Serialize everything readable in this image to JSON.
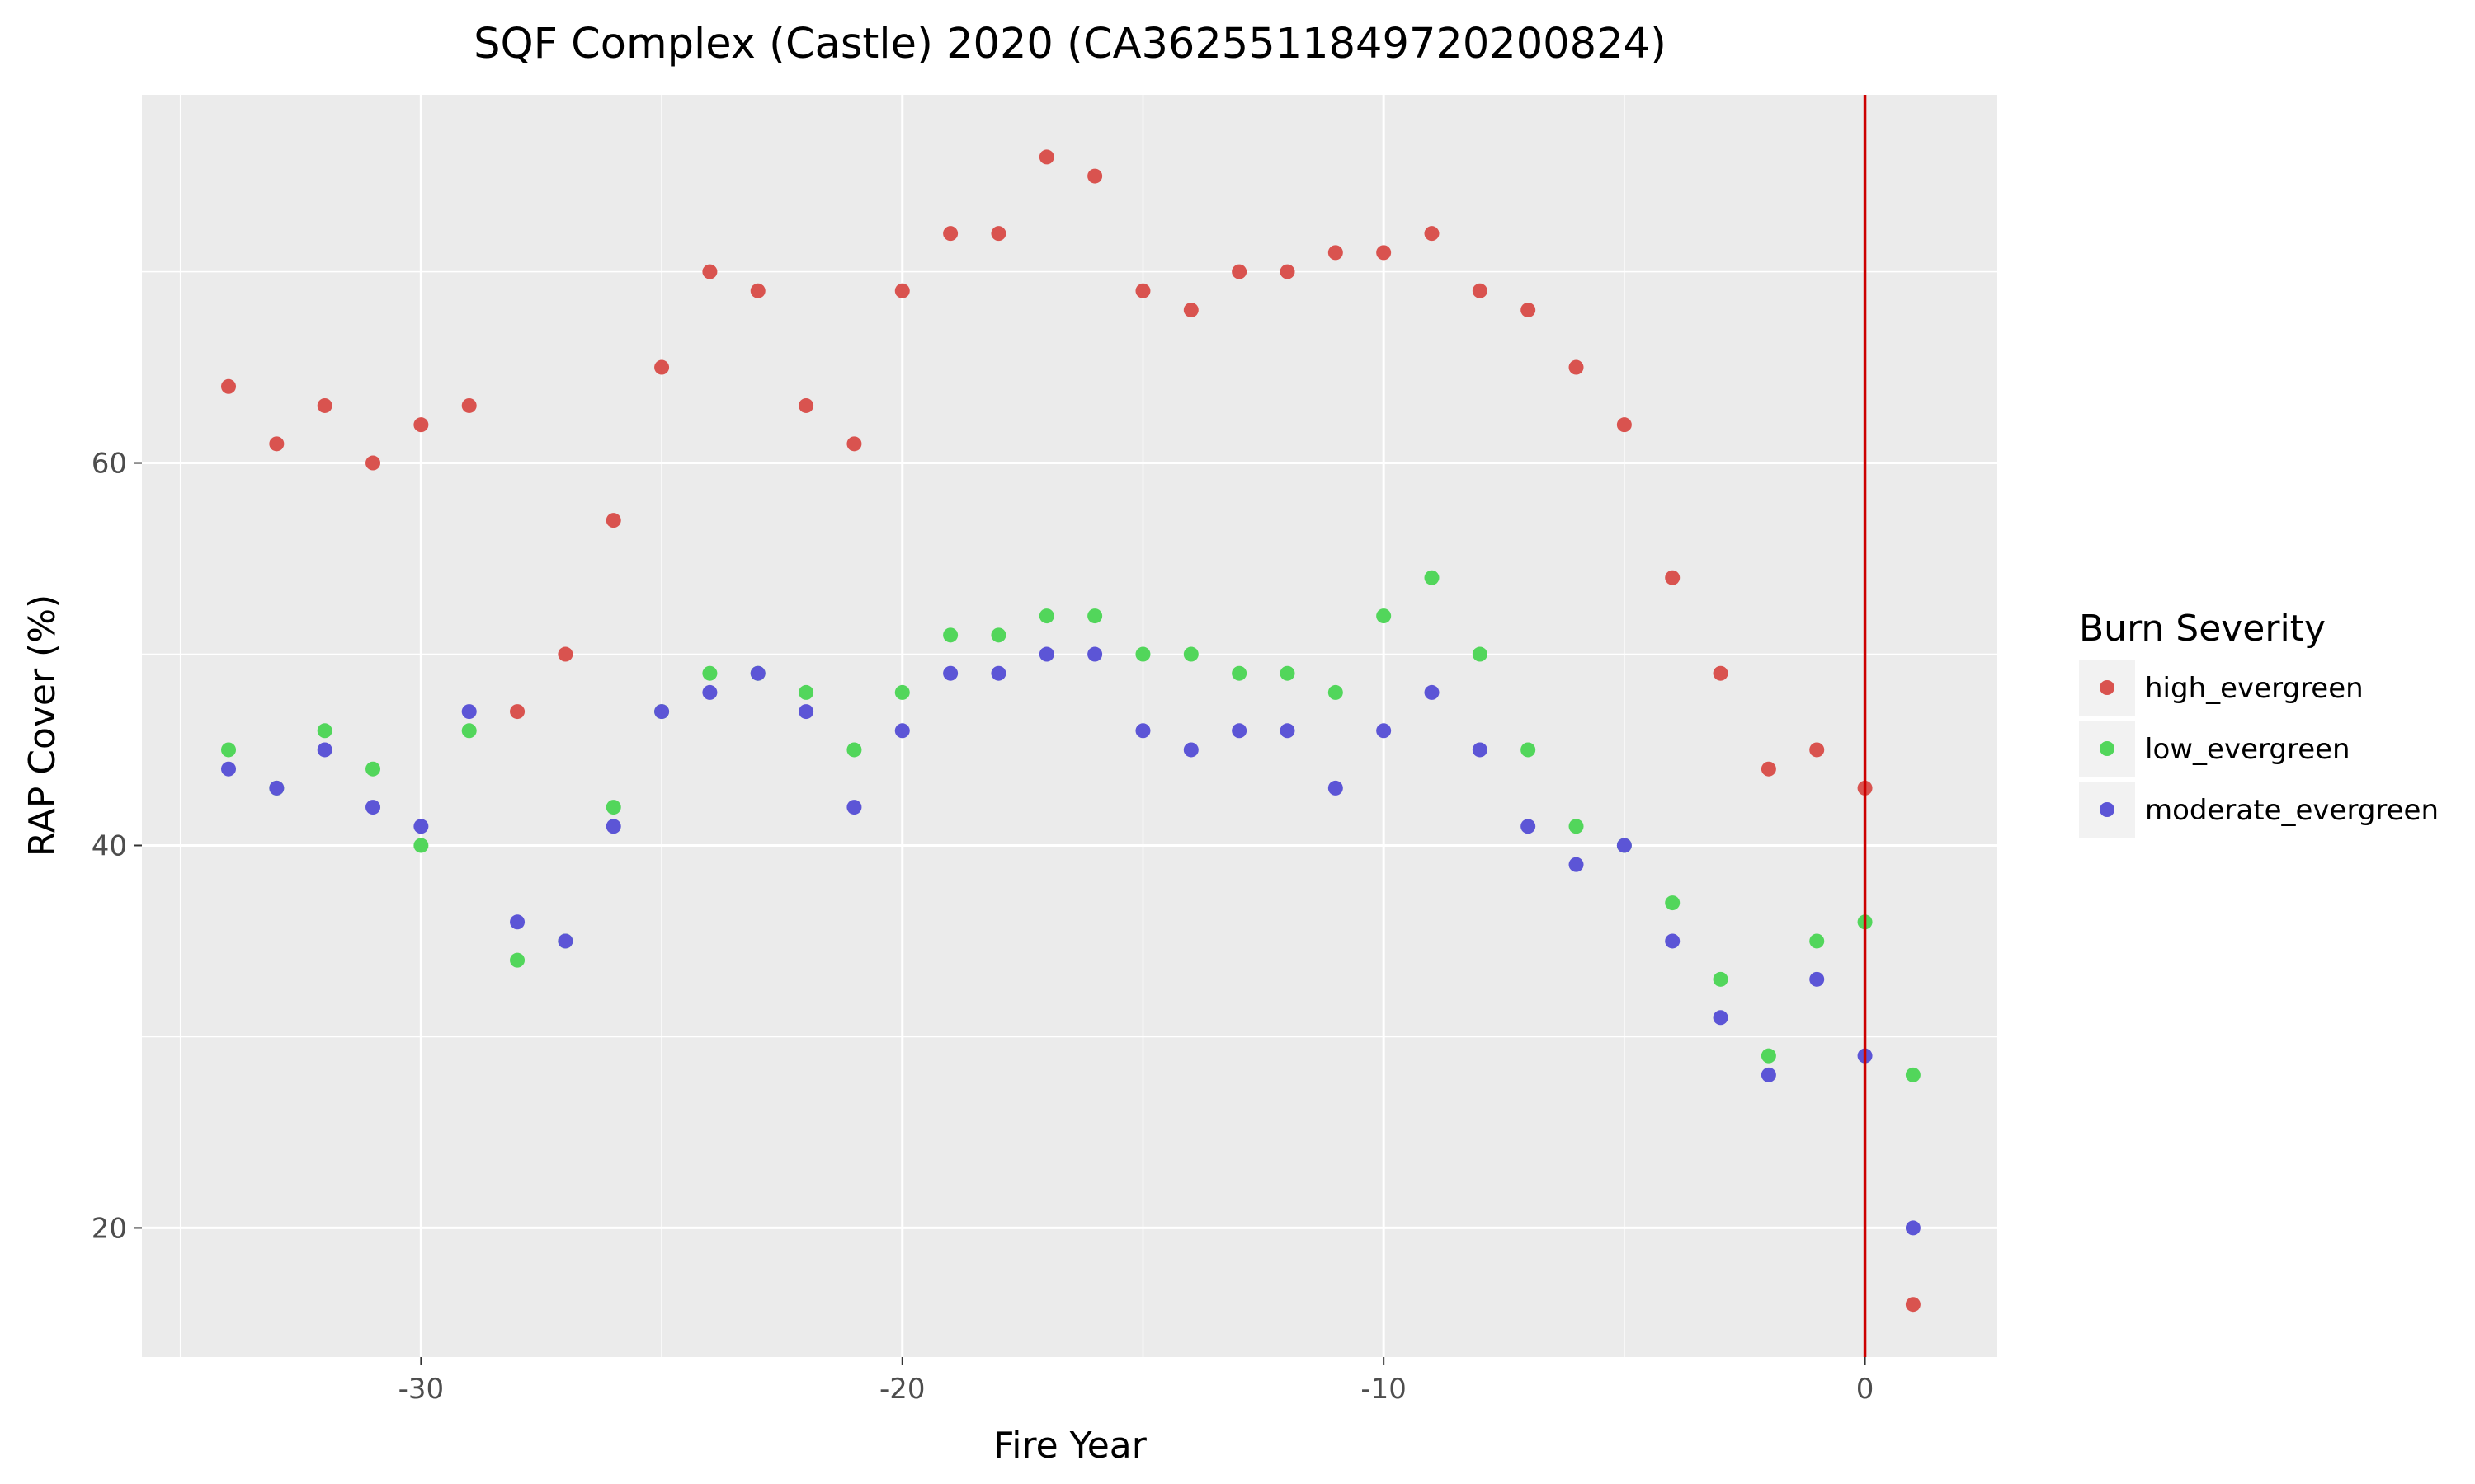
{
  "chart_data": {
    "type": "scatter",
    "title": "SQF Complex (Castle) 2020 (CA3625511849720200824)",
    "xlabel": "Fire Year",
    "ylabel": "RAP Cover (%)",
    "xlim": [
      -35.8,
      2.75
    ],
    "ylim": [
      13.25,
      79.25
    ],
    "x_ticks": [
      -30,
      -20,
      -10,
      0
    ],
    "x_tick_labels": [
      "-30",
      "-20",
      "-10",
      "0"
    ],
    "y_ticks": [
      20,
      40,
      60
    ],
    "y_tick_labels": [
      "20",
      "40",
      "60"
    ],
    "grid": true,
    "vline": {
      "x": 0,
      "color": "#cc0000"
    },
    "legend": {
      "title": "Burn Severity",
      "position": "right",
      "entries": [
        "high_evergreen",
        "low_evergreen",
        "moderate_evergreen"
      ]
    },
    "series": [
      {
        "name": "high_evergreen",
        "color": "#d9534f",
        "x": [
          -34,
          -33,
          -32,
          -31,
          -30,
          -29,
          -28,
          -27,
          -26,
          -25,
          -24,
          -23,
          -22,
          -21,
          -20,
          -19,
          -18,
          -17,
          -16,
          -15,
          -14,
          -13,
          -12,
          -11,
          -10,
          -9,
          -8,
          -7,
          -6,
          -5,
          -4,
          -3,
          -2,
          -1,
          0,
          1
        ],
        "y": [
          64,
          61,
          63,
          60,
          62,
          63,
          47,
          50,
          57,
          65,
          70,
          69,
          63,
          61,
          69,
          72,
          72,
          76,
          75,
          69,
          68,
          70,
          70,
          71,
          71,
          72,
          69,
          68,
          65,
          62,
          54,
          49,
          44,
          45,
          43,
          16
        ]
      },
      {
        "name": "low_evergreen",
        "color": "#52d65b",
        "x": [
          -34,
          -33,
          -32,
          -31,
          -30,
          -29,
          -28,
          -27,
          -26,
          -25,
          -24,
          -23,
          -22,
          -21,
          -20,
          -19,
          -18,
          -17,
          -16,
          -15,
          -14,
          -13,
          -12,
          -11,
          -10,
          -9,
          -8,
          -7,
          -6,
          -5,
          -4,
          -3,
          -2,
          -1,
          0,
          1
        ],
        "y": [
          45,
          43,
          46,
          44,
          40,
          46,
          34,
          35,
          42,
          47,
          49,
          49,
          48,
          45,
          48,
          51,
          51,
          52,
          52,
          50,
          50,
          49,
          49,
          48,
          52,
          54,
          50,
          45,
          41,
          40,
          37,
          33,
          29,
          35,
          36,
          28
        ]
      },
      {
        "name": "moderate_evergreen",
        "color": "#5c55d6",
        "x": [
          -34,
          -33,
          -32,
          -31,
          -30,
          -29,
          -28,
          -27,
          -26,
          -25,
          -24,
          -23,
          -22,
          -21,
          -20,
          -19,
          -18,
          -17,
          -16,
          -15,
          -14,
          -13,
          -12,
          -11,
          -10,
          -9,
          -8,
          -7,
          -6,
          -5,
          -4,
          -3,
          -2,
          -1,
          0,
          1
        ],
        "y": [
          44,
          43,
          45,
          42,
          41,
          47,
          36,
          35,
          41,
          47,
          48,
          49,
          47,
          42,
          46,
          49,
          49,
          50,
          50,
          46,
          45,
          46,
          46,
          43,
          46,
          48,
          45,
          41,
          39,
          40,
          35,
          31,
          28,
          33,
          29,
          20
        ]
      }
    ]
  }
}
